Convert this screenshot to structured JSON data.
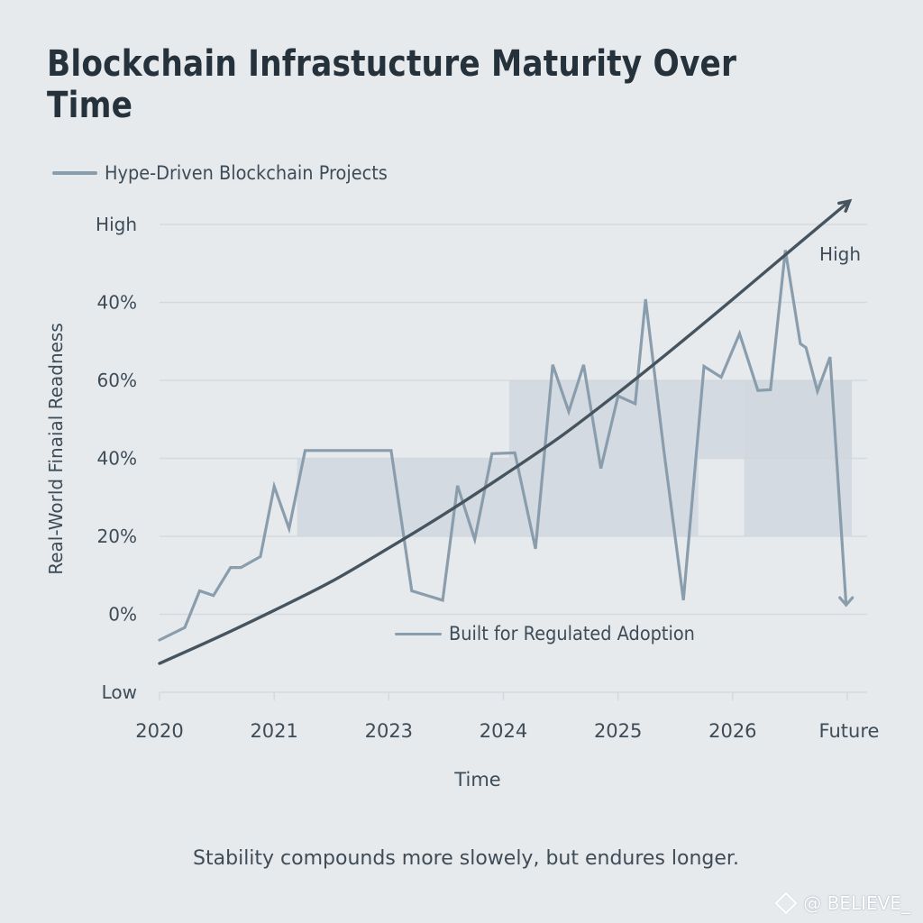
{
  "title": "Blockchain Infrastucture Maturity Over Time",
  "caption": "Stability compounds more slowely, but endures longer.",
  "watermark": "@ BELIEVE_",
  "colors": {
    "background": "#e7eaed",
    "hype_line": "#8a9dac",
    "regulated_line": "#46545f",
    "band_fill": "#d0d7de",
    "grid": "#d3d9de",
    "text": "#3e4c58"
  },
  "chart_data": {
    "type": "line",
    "title": "Blockchain Infrastucture Maturity Over Time",
    "xlabel": "Time",
    "ylabel": "Real-World Finaial Readness",
    "x_tick_labels": [
      "2020",
      "2021",
      "2023",
      "2024",
      "2025",
      "2026",
      "Future"
    ],
    "y_tick_labels": [
      "Low",
      "0%",
      "20%",
      "40%",
      "60%",
      "40%",
      "High"
    ],
    "y_levels": [
      0,
      1,
      2,
      3,
      4,
      5,
      6
    ],
    "x_range": [
      0,
      6
    ],
    "y_range": [
      0,
      6
    ],
    "grid": true,
    "right_annotation": "High",
    "legend": [
      {
        "name": "Hype-Driven Blockchain Projects",
        "placement": "top-left"
      },
      {
        "name": "Built for Regulated Adoption",
        "placement": "bottom-center"
      }
    ],
    "bands": [
      {
        "x_start": 1.2,
        "x_end": 3.05,
        "y_low": 2,
        "y_high": 3
      },
      {
        "x_start": 3.05,
        "x_end": 4.7,
        "y_low": 2,
        "y_high": 4
      },
      {
        "x_start": 4.7,
        "x_end": 6.04,
        "y_low": 3,
        "y_high": 4
      },
      {
        "x_start": 5.1,
        "x_end": 6.04,
        "y_low": 2,
        "y_high": 4
      }
    ],
    "series": [
      {
        "name": "Hype-Driven Blockchain Projects",
        "style": "jagged",
        "end_marker": "arrow-down",
        "points": [
          [
            0.0,
            0.67
          ],
          [
            0.22,
            0.83
          ],
          [
            0.35,
            1.3
          ],
          [
            0.47,
            1.24
          ],
          [
            0.62,
            1.6
          ],
          [
            0.71,
            1.6
          ],
          [
            0.88,
            1.74
          ],
          [
            1.0,
            2.64
          ],
          [
            1.13,
            2.1
          ],
          [
            1.27,
            3.1
          ],
          [
            2.0,
            3.1
          ],
          [
            2.02,
            3.1
          ],
          [
            2.2,
            1.3
          ],
          [
            2.47,
            1.18
          ],
          [
            2.6,
            2.65
          ],
          [
            2.75,
            1.96
          ],
          [
            2.9,
            3.06
          ],
          [
            3.1,
            3.07
          ],
          [
            3.28,
            1.84
          ],
          [
            3.43,
            4.2
          ],
          [
            3.57,
            3.6
          ],
          [
            3.7,
            4.2
          ],
          [
            3.85,
            2.87
          ],
          [
            4.0,
            3.8
          ],
          [
            4.15,
            3.7
          ],
          [
            4.24,
            5.04
          ],
          [
            4.4,
            3.1
          ],
          [
            4.57,
            1.18
          ],
          [
            4.75,
            4.18
          ],
          [
            4.9,
            4.04
          ],
          [
            5.06,
            4.6
          ],
          [
            5.22,
            3.87
          ],
          [
            5.33,
            3.88
          ],
          [
            5.46,
            5.67
          ],
          [
            5.59,
            4.47
          ],
          [
            5.64,
            4.42
          ],
          [
            5.74,
            3.86
          ],
          [
            5.85,
            4.3
          ],
          [
            5.99,
            1.12
          ]
        ]
      },
      {
        "name": "Built for Regulated Adoption",
        "style": "smooth-exponential",
        "end_marker": "arrow-up",
        "points": [
          [
            0.0,
            0.37
          ],
          [
            0.5,
            0.7
          ],
          [
            1.0,
            1.05
          ],
          [
            1.5,
            1.42
          ],
          [
            2.0,
            1.85
          ],
          [
            2.5,
            2.3
          ],
          [
            3.0,
            2.78
          ],
          [
            3.5,
            3.28
          ],
          [
            4.0,
            3.84
          ],
          [
            4.5,
            4.43
          ],
          [
            5.0,
            5.04
          ],
          [
            5.5,
            5.66
          ],
          [
            6.02,
            6.3
          ]
        ]
      }
    ]
  }
}
